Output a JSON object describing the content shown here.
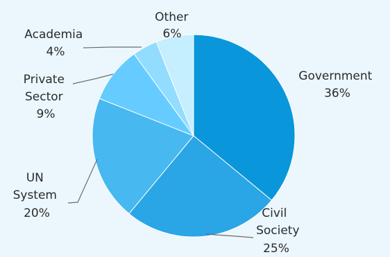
{
  "background": "#ebf7fd",
  "chart_data": {
    "type": "pie",
    "title": "",
    "start": "12 o'clock",
    "direction": "clockwise",
    "slices": [
      {
        "id": "government",
        "name": "Government",
        "pct_label": "36%",
        "value": 36,
        "color": "#0a96db"
      },
      {
        "id": "civil-society",
        "name": "Civil Society",
        "pct_label": "25%",
        "value": 25,
        "color": "#2aa5e6"
      },
      {
        "id": "un-system",
        "name": "UN System",
        "pct_label": "20%",
        "value": 20,
        "color": "#47b8f0"
      },
      {
        "id": "private-sector",
        "name": "Private Sector",
        "pct_label": "9%",
        "value": 9,
        "color": "#66ccff"
      },
      {
        "id": "academia",
        "name": "Academia",
        "pct_label": "4%",
        "value": 4,
        "color": "#92dcff"
      },
      {
        "id": "other",
        "name": "Other",
        "pct_label": "6%",
        "value": 6,
        "color": "#c5eeff"
      }
    ]
  }
}
